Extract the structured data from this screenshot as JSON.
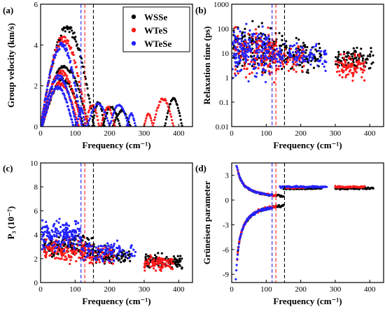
{
  "colors": {
    "WSSe": "#000000",
    "WTeS": "#ff1a1a",
    "WTeSe": "#2222ff"
  },
  "chart_data": [
    {
      "panel": "(a)",
      "type": "scatter",
      "xlabel": "Frequency (cm⁻¹)",
      "ylabel": "Group velocity (km/s)",
      "xlim": [
        0,
        440
      ],
      "ylim": [
        0,
        6
      ],
      "xticks": [
        0,
        100,
        200,
        300,
        400
      ],
      "yticks": [
        0,
        2,
        4,
        6
      ],
      "xtick_labels": [
        "0",
        "100",
        "200",
        "300",
        "400"
      ],
      "ytick_labels": [
        "0",
        "2",
        "4",
        "6"
      ],
      "legend": {
        "position": "top-right",
        "entries": [
          "WSSe",
          "WTeS",
          "WTeSe"
        ]
      },
      "vlines": [
        {
          "x": 117,
          "series": "WTeSe",
          "style": "dashed"
        },
        {
          "x": 128,
          "series": "WTeS",
          "style": "dashed"
        },
        {
          "x": 153,
          "series": "WSSe",
          "style": "dashed"
        }
      ],
      "series": [
        {
          "name": "WSSe",
          "arcs": [
            {
              "x0": 0,
              "x1": 155,
              "peak": 5.0,
              "pts": 90
            },
            {
              "x0": 0,
              "x1": 140,
              "peak": 3.05,
              "pts": 70
            },
            {
              "x0": 5,
              "x1": 125,
              "peak": 2.4,
              "pts": 60
            },
            {
              "x0": 150,
              "x1": 185,
              "peak": 1.25,
              "pts": 20
            },
            {
              "x0": 180,
              "x1": 230,
              "peak": 1.0,
              "pts": 24
            },
            {
              "x0": 210,
              "x1": 260,
              "peak": 0.8,
              "pts": 24
            },
            {
              "x0": 360,
              "x1": 410,
              "peak": 1.4,
              "pts": 26
            }
          ]
        },
        {
          "name": "WTeS",
          "arcs": [
            {
              "x0": 0,
              "x1": 135,
              "peak": 4.5,
              "pts": 80
            },
            {
              "x0": 0,
              "x1": 120,
              "peak": 2.75,
              "pts": 70
            },
            {
              "x0": 5,
              "x1": 110,
              "peak": 2.2,
              "pts": 60
            },
            {
              "x0": 130,
              "x1": 170,
              "peak": 1.1,
              "pts": 20
            },
            {
              "x0": 175,
              "x1": 215,
              "peak": 1.0,
              "pts": 20
            },
            {
              "x0": 300,
              "x1": 325,
              "peak": 0.65,
              "pts": 14
            },
            {
              "x0": 325,
              "x1": 385,
              "peak": 1.4,
              "pts": 28
            }
          ]
        },
        {
          "name": "WTeSe",
          "arcs": [
            {
              "x0": 0,
              "x1": 120,
              "peak": 4.15,
              "pts": 80
            },
            {
              "x0": 0,
              "x1": 105,
              "peak": 2.55,
              "pts": 70
            },
            {
              "x0": 5,
              "x1": 95,
              "peak": 2.0,
              "pts": 60
            },
            {
              "x0": 105,
              "x1": 130,
              "peak": 0.9,
              "pts": 16
            },
            {
              "x0": 135,
              "x1": 200,
              "peak": 1.15,
              "pts": 26
            },
            {
              "x0": 200,
              "x1": 255,
              "peak": 1.1,
              "pts": 24
            },
            {
              "x0": 250,
              "x1": 275,
              "peak": 0.65,
              "pts": 14
            }
          ]
        }
      ]
    },
    {
      "panel": "(b)",
      "type": "scatter",
      "xlabel": "Frequency (cm⁻¹)",
      "ylabel": "Relaxation time (ps)",
      "scale_y": "log",
      "xlim": [
        0,
        440
      ],
      "ylim": [
        0.01,
        1000
      ],
      "xticks": [
        0,
        100,
        200,
        300,
        400
      ],
      "yticks": [
        0.01,
        0.1,
        1,
        10,
        100,
        1000
      ],
      "xtick_labels": [
        "0",
        "100",
        "200",
        "300",
        "400"
      ],
      "ytick_labels": [
        "0.01",
        "0.1",
        "1",
        "10",
        "100",
        "1000"
      ],
      "vlines": [
        {
          "x": 117,
          "series": "WTeSe",
          "style": "dashed"
        },
        {
          "x": 128,
          "series": "WTeS",
          "style": "dashed"
        },
        {
          "x": 153,
          "series": "WSSe",
          "style": "dashed"
        }
      ],
      "series": [
        {
          "name": "WSSe",
          "bands": [
            {
              "x0": 5,
              "x1": 155,
              "center": 15,
              "spread": 1.3,
              "n": 160
            },
            {
              "x0": 155,
              "x1": 260,
              "center": 7,
              "spread": 0.9,
              "n": 90
            },
            {
              "x0": 300,
              "x1": 410,
              "center": 6,
              "spread": 0.6,
              "n": 90
            }
          ]
        },
        {
          "name": "WTeS",
          "bands": [
            {
              "x0": 5,
              "x1": 130,
              "center": 10,
              "spread": 1.3,
              "n": 150
            },
            {
              "x0": 130,
              "x1": 215,
              "center": 6,
              "spread": 0.8,
              "n": 60
            },
            {
              "x0": 300,
              "x1": 385,
              "center": 3,
              "spread": 0.8,
              "n": 90
            }
          ]
        },
        {
          "name": "WTeSe",
          "bands": [
            {
              "x0": 2,
              "x1": 118,
              "center": 12,
              "spread": 1.5,
              "n": 180
            },
            {
              "x0": 118,
              "x1": 275,
              "center": 8,
              "spread": 0.7,
              "n": 110
            }
          ]
        }
      ]
    },
    {
      "panel": "(c)",
      "type": "scatter",
      "xlabel": "Frequency (cm⁻¹)",
      "ylabel": "P₃ (10⁻⁷)",
      "xlim": [
        0,
        440
      ],
      "ylim": [
        0,
        10
      ],
      "xticks": [
        0,
        100,
        200,
        300,
        400
      ],
      "yticks": [
        0,
        2,
        4,
        6,
        8,
        10
      ],
      "xtick_labels": [
        "0",
        "100",
        "200",
        "300",
        "400"
      ],
      "ytick_labels": [
        "0",
        "2",
        "4",
        "6",
        "8",
        "10"
      ],
      "vlines": [
        {
          "x": 117,
          "series": "WTeSe",
          "style": "dashed"
        },
        {
          "x": 128,
          "series": "WTeS",
          "style": "dashed"
        },
        {
          "x": 153,
          "series": "WSSe",
          "style": "dashed"
        }
      ],
      "series": [
        {
          "name": "WSSe",
          "bands": [
            {
              "x0": 10,
              "x1": 155,
              "center": 3.0,
              "spread": 0.9,
              "n": 140
            },
            {
              "x0": 155,
              "x1": 260,
              "center": 2.3,
              "spread": 0.7,
              "n": 80
            },
            {
              "x0": 300,
              "x1": 410,
              "center": 1.8,
              "spread": 0.6,
              "n": 100
            }
          ]
        },
        {
          "name": "WTeS",
          "bands": [
            {
              "x0": 10,
              "x1": 130,
              "center": 2.6,
              "spread": 0.9,
              "n": 140
            },
            {
              "x0": 130,
              "x1": 215,
              "center": 2.3,
              "spread": 0.8,
              "n": 60
            },
            {
              "x0": 300,
              "x1": 385,
              "center": 1.6,
              "spread": 0.6,
              "n": 90
            }
          ]
        },
        {
          "name": "WTeSe",
          "bands": [
            {
              "x0": 2,
              "x1": 118,
              "center": 4.0,
              "spread": 1.2,
              "n": 180
            },
            {
              "x0": 118,
              "x1": 275,
              "center": 2.6,
              "spread": 0.8,
              "n": 110
            }
          ]
        }
      ]
    },
    {
      "panel": "(d)",
      "type": "scatter",
      "xlabel": "Frequency (cm⁻¹)",
      "ylabel": "Grüneisen parameter",
      "xlim": [
        0,
        440
      ],
      "ylim": [
        -10,
        4.5
      ],
      "xticks": [
        0,
        100,
        200,
        300,
        400
      ],
      "yticks": [
        -9,
        -6,
        -3,
        0,
        3
      ],
      "xtick_labels": [
        "0",
        "100",
        "200",
        "300",
        "400"
      ],
      "ytick_labels": [
        "-9",
        "-6",
        "-3",
        "0",
        "3"
      ],
      "vlines": [
        {
          "x": 117,
          "series": "WTeSe",
          "style": "dashed"
        },
        {
          "x": 128,
          "series": "WTeS",
          "style": "dashed"
        },
        {
          "x": 153,
          "series": "WSSe",
          "style": "dashed"
        }
      ],
      "series": [
        {
          "name": "WSSe",
          "curves": [
            {
              "kind": "neg",
              "x0": 18,
              "x1": 150,
              "n": 70
            },
            {
              "kind": "pos",
              "x0": 20,
              "x1": 150,
              "n": 60
            },
            {
              "kind": "flat",
              "x0": 150,
              "x1": 260,
              "y": 1.4,
              "n": 50
            },
            {
              "kind": "flat",
              "x0": 300,
              "x1": 410,
              "y": 1.4,
              "n": 60
            }
          ]
        },
        {
          "name": "WTeS",
          "curves": [
            {
              "kind": "neg",
              "x0": 16,
              "x1": 128,
              "n": 70
            },
            {
              "kind": "pos",
              "x0": 18,
              "x1": 128,
              "n": 60
            },
            {
              "kind": "flat",
              "x0": 150,
              "x1": 215,
              "y": 1.5,
              "n": 30
            },
            {
              "kind": "flat",
              "x0": 300,
              "x1": 385,
              "y": 1.6,
              "n": 50
            }
          ]
        },
        {
          "name": "WTeSe",
          "curves": [
            {
              "kind": "neg",
              "x0": 12,
              "x1": 117,
              "n": 80
            },
            {
              "kind": "pos",
              "x0": 14,
              "x1": 117,
              "n": 60
            },
            {
              "kind": "flat",
              "x0": 140,
              "x1": 275,
              "y": 1.6,
              "n": 60
            }
          ]
        }
      ]
    }
  ]
}
